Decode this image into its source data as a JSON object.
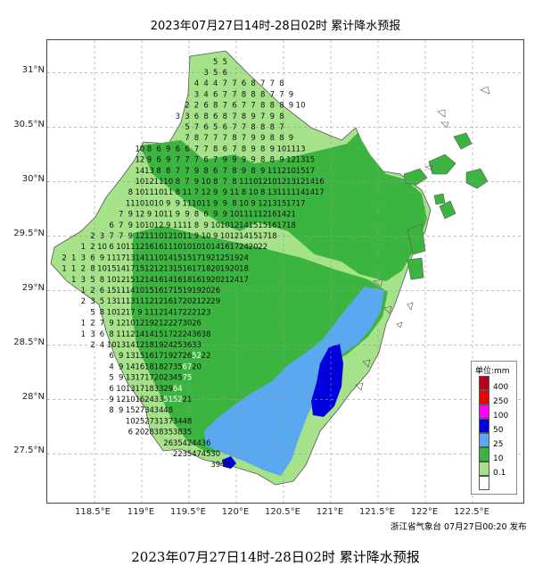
{
  "title": "2023年07月27日14时-28日02时 累计降水预报",
  "caption": "2023年07月27日14时-28日02时 累计降水预报",
  "footer": "浙江省气象台 07月27日00:20 发布",
  "lat_ticks": [
    "31°N",
    "30.5°N",
    "30°N",
    "29.5°N",
    "29°N",
    "28.5°N",
    "28°N",
    "27.5°N"
  ],
  "lon_ticks": [
    "118.5°E",
    "119°E",
    "119.5°E",
    "120°E",
    "120.5°E",
    "121°E",
    "121.5°E",
    "122°E",
    "122.5°E"
  ],
  "legend": {
    "title": "单位:mm",
    "items": [
      {
        "label": "400",
        "color": "#b8001e"
      },
      {
        "label": "250",
        "color": "#ee0000"
      },
      {
        "label": "100",
        "color": "#ff00ff"
      },
      {
        "label": "50",
        "color": "#0000dd"
      },
      {
        "label": "25",
        "color": "#5aa8f0"
      },
      {
        "label": "10",
        "color": "#3cb440"
      },
      {
        "label": "0.1",
        "color": "#a6e28a"
      },
      {
        "label": "",
        "color": "#ffffff"
      }
    ]
  },
  "colors": {
    "light_green": "#a6e28a",
    "green": "#3cb440",
    "light_blue": "#5aa8f0",
    "blue": "#0000dd",
    "grid": "#999999",
    "coast": "#555555"
  },
  "station_rows": [
    {
      "lat": 31.08,
      "lon0": 119.78,
      "step": 0.1,
      "values": [
        5,
        5
      ]
    },
    {
      "lat": 30.98,
      "lon0": 119.68,
      "step": 0.1,
      "values": [
        3,
        5,
        6
      ]
    },
    {
      "lat": 30.88,
      "lon0": 119.58,
      "step": 0.1,
      "values": [
        4,
        4,
        4,
        7,
        7,
        6,
        8,
        7,
        7,
        8
      ]
    },
    {
      "lat": 30.78,
      "lon0": 119.58,
      "step": 0.1,
      "values": [
        3,
        4,
        6,
        7,
        7,
        8,
        8,
        8,
        7,
        7,
        9
      ]
    },
    {
      "lat": 30.68,
      "lon0": 119.48,
      "step": 0.1,
      "values": [
        2,
        2,
        6,
        8,
        7,
        6,
        7,
        7,
        8,
        8,
        8,
        9,
        10
      ]
    },
    {
      "lat": 30.58,
      "lon0": 119.38,
      "step": 0.1,
      "values": [
        3,
        3,
        6,
        8,
        6,
        8,
        7,
        8,
        9,
        7,
        9,
        8
      ]
    },
    {
      "lat": 30.48,
      "lon0": 119.48,
      "step": 0.1,
      "values": [
        5,
        7,
        6,
        5,
        6,
        7,
        7,
        8,
        8,
        8,
        7
      ]
    },
    {
      "lat": 30.38,
      "lon0": 119.48,
      "step": 0.1,
      "values": [
        7,
        8,
        7,
        7,
        7,
        8,
        7,
        9,
        9,
        8,
        8,
        9
      ]
    },
    {
      "lat": 30.28,
      "lon0": 118.98,
      "step": 0.1,
      "values": [
        10,
        8,
        6,
        9,
        6,
        6,
        7,
        7,
        8,
        6,
        7,
        8,
        9,
        8,
        9,
        10,
        11,
        13
      ]
    },
    {
      "lat": 30.18,
      "lon0": 118.98,
      "step": 0.1,
      "values": [
        12,
        9,
        6,
        9,
        7,
        7,
        7,
        6,
        7,
        9,
        9,
        9,
        9,
        8,
        8,
        9,
        12,
        13,
        15
      ]
    },
    {
      "lat": 30.08,
      "lon0": 118.98,
      "step": 0.1,
      "values": [
        14,
        13,
        8,
        8,
        7,
        7,
        9,
        8,
        6,
        7,
        8,
        9,
        8,
        9,
        11,
        12,
        10,
        15,
        17
      ]
    },
    {
      "lat": 29.98,
      "lon0": 118.98,
      "step": 0.1,
      "values": [
        10,
        12,
        11,
        10,
        8,
        7,
        9,
        10,
        8,
        7,
        8,
        11,
        10,
        12,
        10,
        12,
        13,
        12,
        14,
        16
      ]
    },
    {
      "lat": 29.88,
      "lon0": 118.88,
      "step": 0.1,
      "values": [
        8,
        10,
        11,
        10,
        11,
        8,
        11,
        7,
        12,
        9,
        9,
        11,
        8,
        10,
        8,
        13,
        11,
        11,
        14,
        14,
        17
      ]
    },
    {
      "lat": 29.78,
      "lon0": 118.88,
      "step": 0.1,
      "values": [
        11,
        10,
        10,
        10,
        9,
        9,
        11,
        10,
        11,
        9,
        9,
        8,
        10,
        9,
        12,
        13,
        15,
        17,
        17
      ]
    },
    {
      "lat": 29.68,
      "lon0": 118.78,
      "step": 0.1,
      "values": [
        7,
        9,
        12,
        9,
        10,
        11,
        9,
        9,
        8,
        6,
        9,
        9,
        10,
        11,
        11,
        12,
        16,
        14,
        21
      ]
    },
    {
      "lat": 29.58,
      "lon0": 118.68,
      "step": 0.1,
      "values": [
        6,
        7,
        9,
        10,
        10,
        12,
        9,
        11,
        11,
        8,
        9,
        10,
        10,
        12,
        14,
        15,
        15,
        16,
        17,
        18
      ]
    },
    {
      "lat": 29.48,
      "lon0": 118.48,
      "step": 0.1,
      "values": [
        2,
        3,
        7,
        7,
        9,
        12,
        11,
        10,
        12,
        10,
        11,
        9,
        10,
        9,
        10,
        12,
        14,
        15,
        17,
        18
      ]
    },
    {
      "lat": 29.38,
      "lon0": 118.38,
      "step": 0.1,
      "values": [
        1,
        2,
        10,
        6,
        10,
        11,
        12,
        16,
        16,
        11,
        10,
        10,
        10,
        10,
        14,
        16,
        17,
        24,
        20,
        22
      ]
    },
    {
      "lat": 29.28,
      "lon0": 118.18,
      "step": 0.1,
      "values": [
        2,
        1,
        3,
        6,
        9,
        11,
        17,
        13,
        14,
        11,
        10,
        14,
        15,
        15,
        17,
        19,
        21,
        25,
        19,
        24
      ]
    },
    {
      "lat": 29.18,
      "lon0": 118.18,
      "step": 0.1,
      "values": [
        1,
        1,
        2,
        8,
        10,
        15,
        14,
        17,
        15,
        12,
        12,
        13,
        15,
        16,
        17,
        18,
        20,
        19,
        20,
        18
      ]
    },
    {
      "lat": 29.08,
      "lon0": 118.28,
      "step": 0.1,
      "values": [
        1,
        3,
        5,
        8,
        10,
        12,
        15,
        12,
        14,
        16,
        14,
        16,
        18,
        16,
        19,
        20,
        21,
        24,
        17
      ]
    },
    {
      "lat": 28.98,
      "lon0": 118.38,
      "step": 0.1,
      "values": [
        1,
        2,
        6,
        15,
        11,
        14,
        10,
        15,
        16,
        17,
        15,
        19,
        19,
        20,
        26
      ]
    },
    {
      "lat": 28.88,
      "lon0": 118.38,
      "step": 0.1,
      "values": [
        2,
        3,
        5,
        13,
        11,
        13,
        11,
        12,
        12,
        16,
        17,
        20,
        21,
        22,
        29
      ]
    },
    {
      "lat": 28.78,
      "lon0": 118.48,
      "step": 0.1,
      "values": [
        5,
        8,
        10,
        12,
        17,
        9,
        11,
        12,
        14,
        17,
        22,
        21,
        23
      ]
    },
    {
      "lat": 28.68,
      "lon0": 118.38,
      "step": 0.1,
      "values": [
        1,
        2,
        7,
        9,
        12,
        10,
        12,
        19,
        21,
        22,
        27,
        30,
        26
      ]
    },
    {
      "lat": 28.58,
      "lon0": 118.38,
      "step": 0.1,
      "values": [
        1,
        3,
        6,
        8,
        11,
        12,
        14,
        14,
        15,
        17,
        22,
        24,
        36,
        38
      ]
    },
    {
      "lat": 28.48,
      "lon0": 118.48,
      "step": 0.1,
      "values": [
        2,
        4,
        10,
        13,
        14,
        12,
        18,
        19,
        24,
        25,
        36,
        33
      ]
    },
    {
      "lat": 28.38,
      "lon0": 118.68,
      "step": 0.1,
      "values": [
        6,
        9,
        13,
        15,
        16,
        17,
        19,
        27,
        26,
        52,
        22
      ]
    },
    {
      "lat": 28.28,
      "lon0": 118.68,
      "step": 0.1,
      "values": [
        4,
        9,
        14,
        16,
        18,
        18,
        27,
        35,
        67,
        20
      ]
    },
    {
      "lat": 28.18,
      "lon0": 118.68,
      "step": 0.1,
      "values": [
        5,
        9,
        13,
        17,
        17,
        20,
        23,
        45,
        75
      ]
    },
    {
      "lat": 28.08,
      "lon0": 118.68,
      "step": 0.1,
      "values": [
        6,
        10,
        13,
        17,
        18,
        33,
        29,
        64
      ]
    },
    {
      "lat": 27.98,
      "lon0": 118.68,
      "step": 0.1,
      "values": [
        9,
        12,
        10,
        16,
        24,
        33,
        51,
        52,
        21
      ]
    },
    {
      "lat": 27.88,
      "lon0": 118.68,
      "step": 0.1,
      "values": [
        8,
        9,
        15,
        27,
        34,
        34,
        48
      ]
    },
    {
      "lat": 27.78,
      "lon0": 118.88,
      "step": 0.1,
      "values": [
        10,
        25,
        27,
        31,
        37,
        34,
        48
      ]
    },
    {
      "lat": 27.68,
      "lon0": 118.88,
      "step": 0.1,
      "values": [
        6,
        20,
        28,
        38,
        35,
        38,
        35
      ]
    },
    {
      "lat": 27.58,
      "lon0": 119.28,
      "step": 0.1,
      "values": [
        26,
        35,
        42,
        44,
        36
      ]
    },
    {
      "lat": 27.48,
      "lon0": 119.38,
      "step": 0.1,
      "values": [
        22,
        35,
        47,
        45,
        30
      ]
    },
    {
      "lat": 27.38,
      "lon0": 119.78,
      "step": 0.1,
      "values": [
        39,
        46
      ]
    }
  ]
}
